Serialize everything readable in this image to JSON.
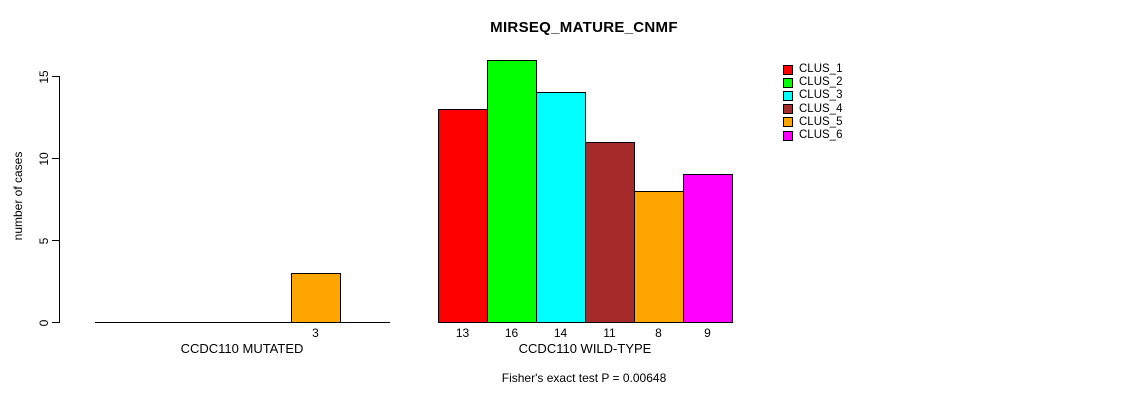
{
  "chart_data": {
    "type": "bar",
    "title": "MIRSEQ_MATURE_CNMF",
    "ylabel": "number of cases",
    "subtitle": "Fisher's exact test P = 0.00648",
    "yticks": [
      0,
      5,
      10,
      15
    ],
    "ylim": [
      0,
      16
    ],
    "grid": false,
    "legend_position": "right",
    "legend": [
      {
        "label": "CLUS_1",
        "color": "#FF0000"
      },
      {
        "label": "CLUS_2",
        "color": "#00FF00"
      },
      {
        "label": "CLUS_3",
        "color": "#00FFFF"
      },
      {
        "label": "CLUS_4",
        "color": "#A52A2A"
      },
      {
        "label": "CLUS_5",
        "color": "#FFA500"
      },
      {
        "label": "CLUS_6",
        "color": "#FF00FF"
      }
    ],
    "groups": [
      {
        "label": "CCDC110 MUTATED",
        "values": [
          0,
          0,
          0,
          0,
          3,
          0
        ]
      },
      {
        "label": "CCDC110 WILD-TYPE",
        "values": [
          13,
          16,
          14,
          11,
          8,
          9
        ]
      }
    ]
  }
}
